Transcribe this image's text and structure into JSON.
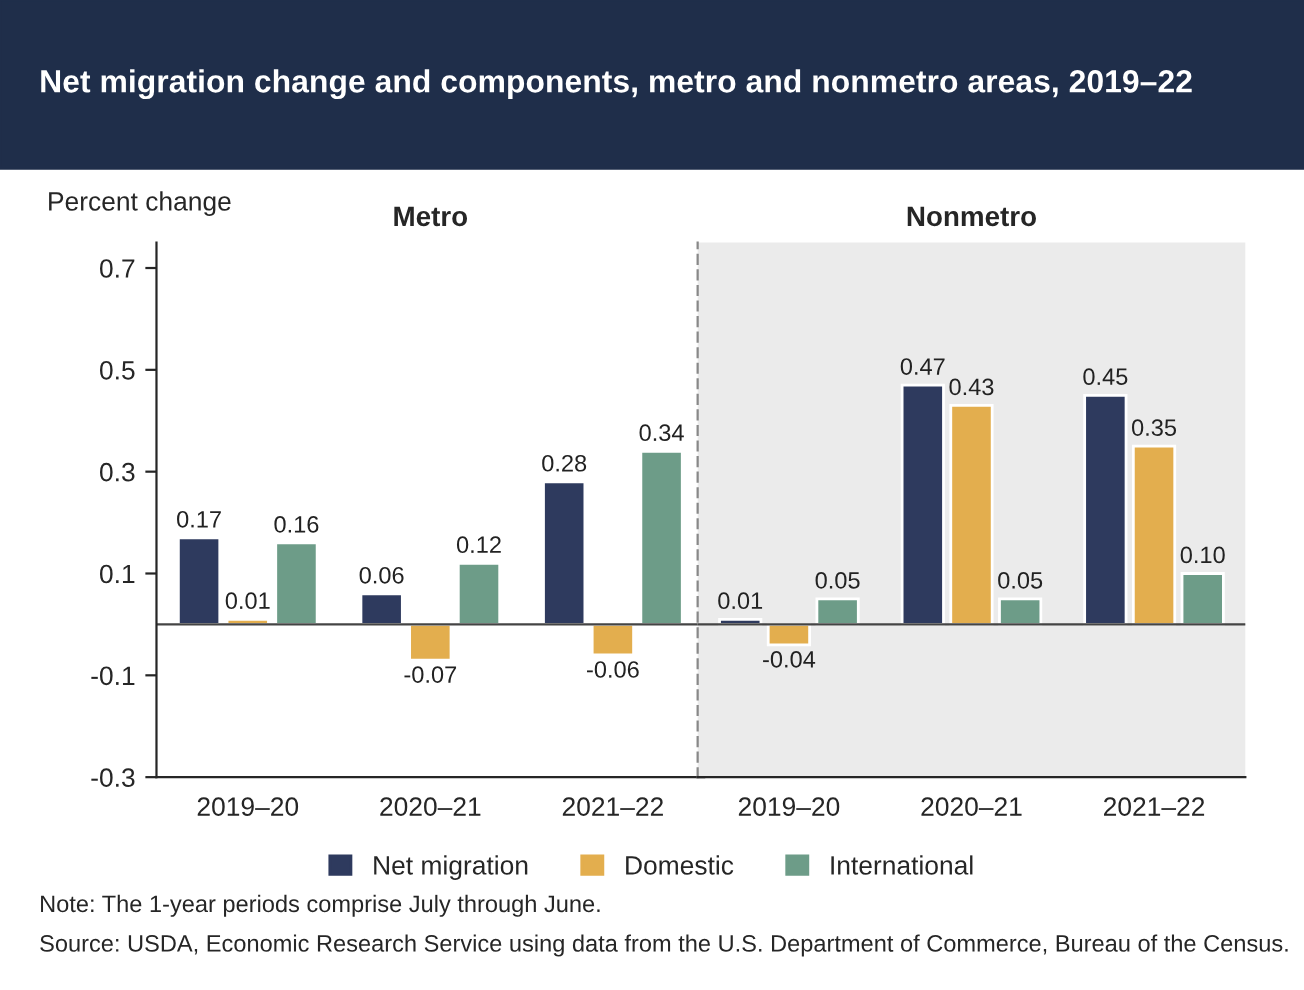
{
  "chart_data": [
    {
      "type": "bar",
      "title": "Net migration change and components, metro and nonmetro areas, 2019–22",
      "subtitle": "Metro",
      "ylabel": "Percent change",
      "categories": [
        "2019–20",
        "2020–21",
        "2021–22"
      ],
      "ylim": [
        -0.3,
        0.75
      ],
      "yticks": [
        -0.3,
        -0.1,
        0.1,
        0.3,
        0.5,
        0.7
      ],
      "legend": "bottom",
      "series": [
        {
          "name": "Net migration",
          "color": "#2e3a5e",
          "values": [
            0.17,
            0.06,
            0.28
          ],
          "value_labels": [
            "0.17",
            "0.06",
            "0.28"
          ]
        },
        {
          "name": "Domestic",
          "color": "#e3ae4e",
          "values": [
            0.01,
            -0.07,
            -0.06
          ],
          "value_labels": [
            "0.01",
            "-0.07",
            "-0.06"
          ]
        },
        {
          "name": "International",
          "color": "#6d9c88",
          "values": [
            0.16,
            0.12,
            0.34
          ],
          "value_labels": [
            "0.16",
            "0.12",
            "0.34"
          ]
        }
      ],
      "annotations": [
        "Note: The 1-year periods comprise July through June.",
        "Source: USDA, Economic Research Service using data from the U.S. Department of Commerce, Bureau of the Census."
      ]
    },
    {
      "type": "bar",
      "subtitle": "Nonmetro",
      "categories": [
        "2019–20",
        "2020–21",
        "2021–22"
      ],
      "ylim": [
        -0.3,
        0.75
      ],
      "tick_labels": "x",
      "series": [
        {
          "color": "#2e3a5e",
          "values": [
            0.01,
            0.47,
            0.45
          ],
          "value_labels": [
            "0.01",
            "0.47",
            "0.45"
          ]
        },
        {
          "color": "#e3ae4e",
          "values": [
            -0.04,
            0.43,
            0.35
          ],
          "value_labels": [
            "-0.04",
            "0.43",
            "0.35"
          ]
        },
        {
          "color": "#6d9c88",
          "values": [
            0.05,
            0.05,
            0.1
          ],
          "value_labels": [
            "0.05",
            "0.05",
            "0.10"
          ]
        }
      ]
    }
  ]
}
